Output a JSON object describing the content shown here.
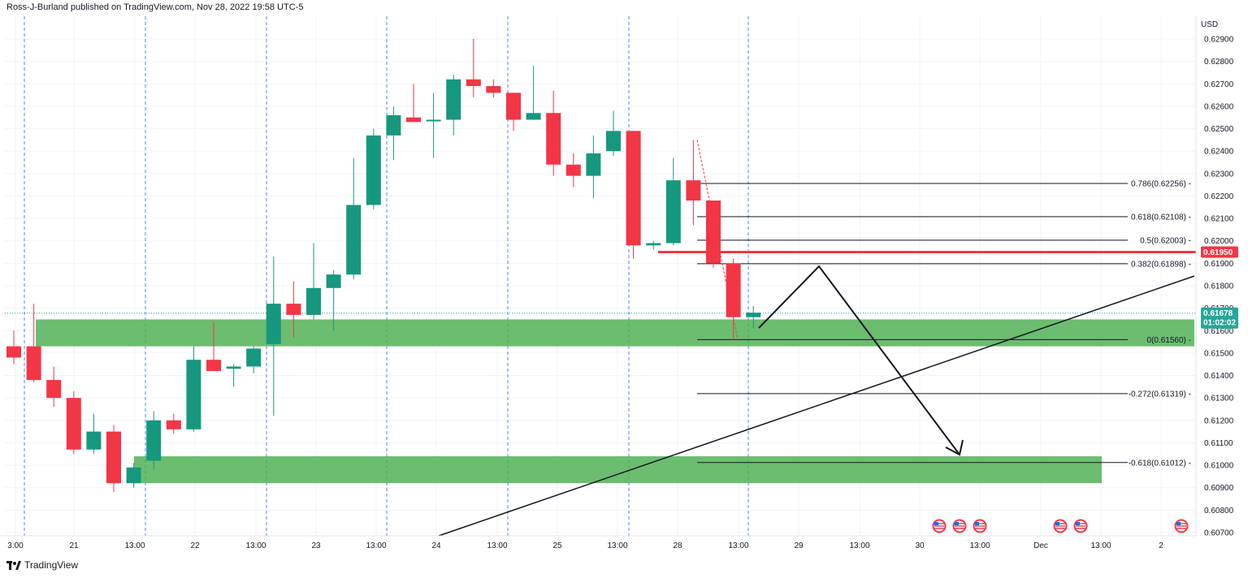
{
  "header": {
    "text": "Ross-J-Burland published on TradingView.com, Nov 28, 2022 19:58 UTC-5"
  },
  "footer": {
    "brand": "TradingView",
    "logo": "tradingview-logo-icon"
  },
  "colors": {
    "bull": "#26a69a",
    "bull_body": "#16987e",
    "bear": "#f23645",
    "zone": "#4caf50",
    "grid": "#f0f3fa",
    "session": "#2962ff",
    "price_line": "#f23645"
  },
  "chart_data": {
    "type": "candlestick",
    "currency": "USD",
    "ylim": [
      0.607,
      0.629
    ],
    "y_ticks": [
      "0.62900",
      "0.62800",
      "0.62700",
      "0.62600",
      "0.62500",
      "0.62400",
      "0.62300",
      "0.62200",
      "0.62100",
      "0.62000",
      "0.61900",
      "0.61800",
      "0.61700",
      "0.61600",
      "0.61500",
      "0.61400",
      "0.61300",
      "0.61200",
      "0.61100",
      "0.61000",
      "0.60900",
      "0.60800",
      "0.60700"
    ],
    "x_labels": [
      "3:00",
      "21",
      "13:00",
      "22",
      "13:00",
      "23",
      "13:00",
      "24",
      "13:00",
      "25",
      "13:00",
      "28",
      "13:00",
      "29",
      "13:00",
      "30",
      "13:00",
      "Dec",
      "13:00",
      "2"
    ],
    "candles": [
      {
        "o": 0.6153,
        "h": 0.616,
        "l": 0.6145,
        "c": 0.6148
      },
      {
        "o": 0.6153,
        "h": 0.6172,
        "l": 0.6137,
        "c": 0.6138
      },
      {
        "o": 0.6138,
        "h": 0.6144,
        "l": 0.6126,
        "c": 0.613
      },
      {
        "o": 0.613,
        "h": 0.6133,
        "l": 0.6105,
        "c": 0.6107
      },
      {
        "o": 0.6107,
        "h": 0.6123,
        "l": 0.6105,
        "c": 0.6115
      },
      {
        "o": 0.6115,
        "h": 0.6118,
        "l": 0.6088,
        "c": 0.6092
      },
      {
        "o": 0.6092,
        "h": 0.6101,
        "l": 0.609,
        "c": 0.6099
      },
      {
        "o": 0.6102,
        "h": 0.6124,
        "l": 0.6098,
        "c": 0.612
      },
      {
        "o": 0.612,
        "h": 0.6123,
        "l": 0.6114,
        "c": 0.6116
      },
      {
        "o": 0.6116,
        "h": 0.6153,
        "l": 0.6115,
        "c": 0.6147
      },
      {
        "o": 0.6147,
        "h": 0.6164,
        "l": 0.6142,
        "c": 0.6142
      },
      {
        "o": 0.6143,
        "h": 0.6145,
        "l": 0.6135,
        "c": 0.6144
      },
      {
        "o": 0.6144,
        "h": 0.6153,
        "l": 0.6141,
        "c": 0.6152
      },
      {
        "o": 0.6154,
        "h": 0.6193,
        "l": 0.6122,
        "c": 0.6172
      },
      {
        "o": 0.6172,
        "h": 0.6182,
        "l": 0.6157,
        "c": 0.6167
      },
      {
        "o": 0.6167,
        "h": 0.6199,
        "l": 0.6165,
        "c": 0.6179
      },
      {
        "o": 0.6179,
        "h": 0.6187,
        "l": 0.616,
        "c": 0.6185
      },
      {
        "o": 0.6185,
        "h": 0.6237,
        "l": 0.6183,
        "c": 0.6216
      },
      {
        "o": 0.6216,
        "h": 0.625,
        "l": 0.6214,
        "c": 0.6247
      },
      {
        "o": 0.6247,
        "h": 0.626,
        "l": 0.6236,
        "c": 0.6256
      },
      {
        "o": 0.6255,
        "h": 0.627,
        "l": 0.6253,
        "c": 0.6253
      },
      {
        "o": 0.6254,
        "h": 0.6266,
        "l": 0.6237,
        "c": 0.6254
      },
      {
        "o": 0.6254,
        "h": 0.6274,
        "l": 0.6247,
        "c": 0.6272
      },
      {
        "o": 0.6272,
        "h": 0.629,
        "l": 0.6264,
        "c": 0.6269
      },
      {
        "o": 0.6269,
        "h": 0.6272,
        "l": 0.6264,
        "c": 0.6266
      },
      {
        "o": 0.6266,
        "h": 0.6266,
        "l": 0.6249,
        "c": 0.6254
      },
      {
        "o": 0.6254,
        "h": 0.6278,
        "l": 0.6254,
        "c": 0.6257
      },
      {
        "o": 0.6257,
        "h": 0.6267,
        "l": 0.6229,
        "c": 0.6234
      },
      {
        "o": 0.6234,
        "h": 0.6239,
        "l": 0.6224,
        "c": 0.6229
      },
      {
        "o": 0.6229,
        "h": 0.6247,
        "l": 0.6219,
        "c": 0.6239
      },
      {
        "o": 0.624,
        "h": 0.6258,
        "l": 0.6238,
        "c": 0.6249
      },
      {
        "o": 0.6249,
        "h": 0.6249,
        "l": 0.6192,
        "c": 0.6198
      },
      {
        "o": 0.6198,
        "h": 0.62,
        "l": 0.6196,
        "c": 0.6199
      },
      {
        "o": 0.6199,
        "h": 0.6237,
        "l": 0.6198,
        "c": 0.6227
      },
      {
        "o": 0.6227,
        "h": 0.6245,
        "l": 0.6207,
        "c": 0.6218
      },
      {
        "o": 0.6218,
        "h": 0.6218,
        "l": 0.6188,
        "c": 0.619
      },
      {
        "o": 0.619,
        "h": 0.6192,
        "l": 0.6156,
        "c": 0.6166
      },
      {
        "o": 0.6166,
        "h": 0.6171,
        "l": 0.6161,
        "c": 0.6168
      }
    ],
    "fib_levels": [
      {
        "label": "0.786(0.62256)",
        "value": 0.62256
      },
      {
        "label": "0.618(0.62108)",
        "value": 0.62108
      },
      {
        "label": "0.5(0.62003)",
        "value": 0.62003
      },
      {
        "label": "0.382(0.61898)",
        "value": 0.61898
      },
      {
        "label": "0(0.61560)",
        "value": 0.6156
      },
      {
        "label": "-0.272(0.61319)",
        "value": 0.61319
      },
      {
        "label": "-0.618(0.61012)",
        "value": 0.61012
      }
    ],
    "price_marks": [
      {
        "label": "0.61950",
        "value": 0.6195,
        "color": "#f23645"
      },
      {
        "label": "0.61678",
        "sub": "01:02:02",
        "value": 0.61678,
        "color": "#26a69a"
      }
    ],
    "zones": [
      {
        "y_top": 0.6165,
        "y_bottom": 0.6153
      },
      {
        "y_top": 0.6104,
        "y_bottom": 0.6092
      }
    ],
    "events": [
      "us-flag-icon",
      "us-flag-icon",
      "us-flag-icon",
      "us-flag-icon",
      "us-flag-icon",
      "us-flag-icon"
    ]
  }
}
